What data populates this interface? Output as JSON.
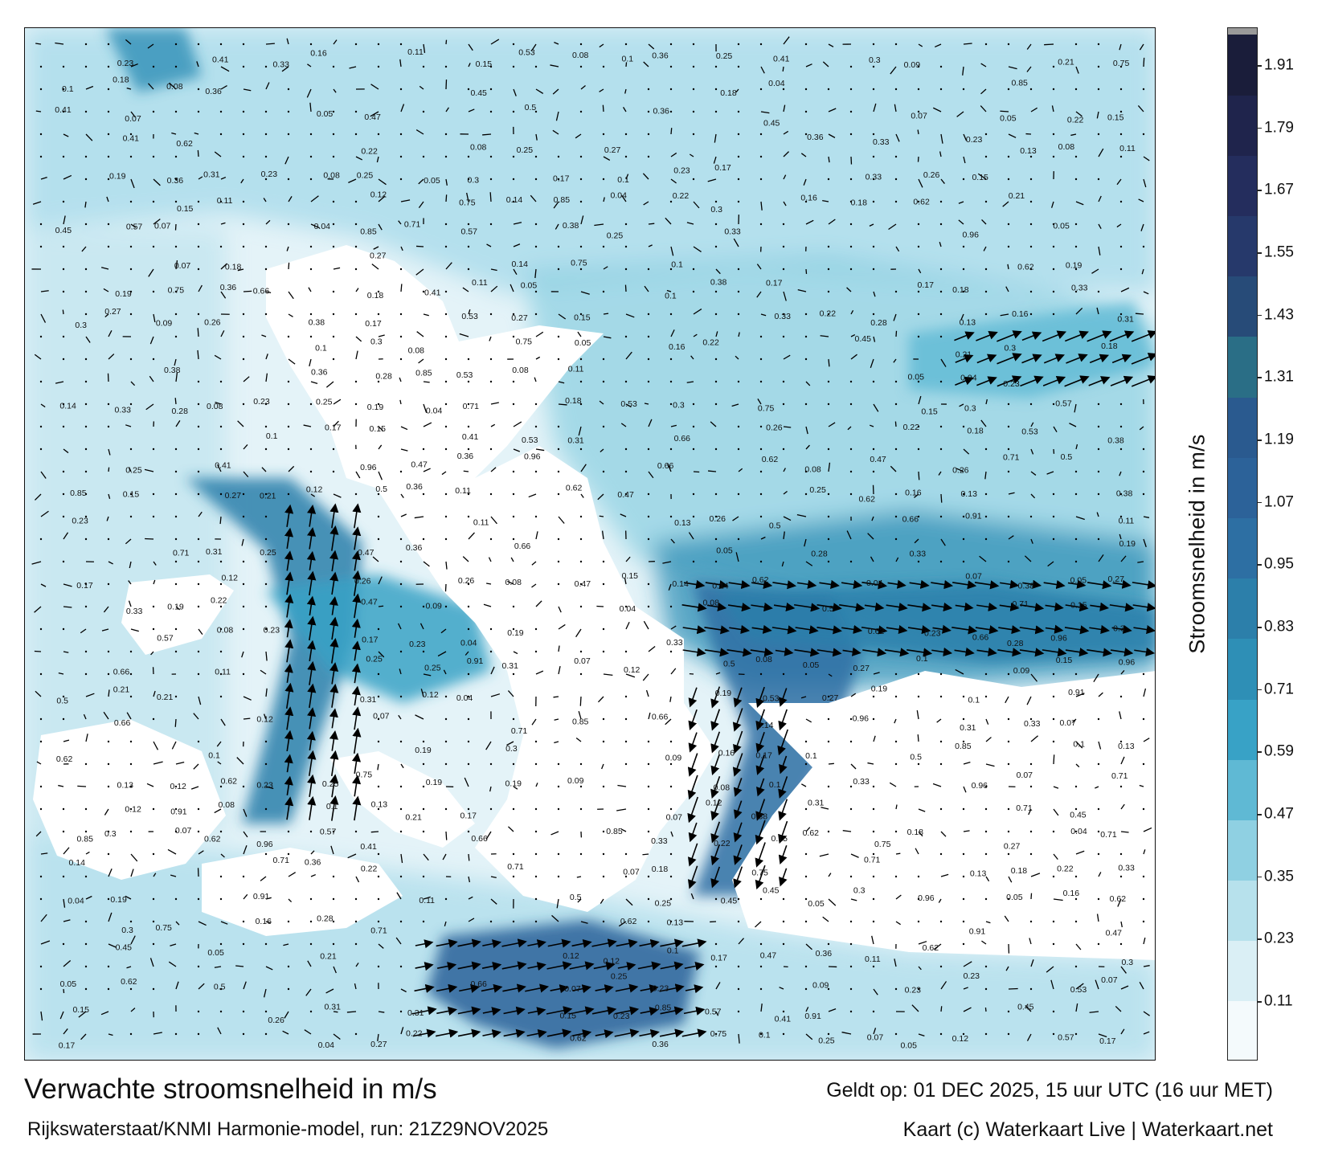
{
  "title": "Verwachte stroomsnelheid in m/s",
  "subtitle": "Rijkswaterstaat/KNMI Harmonie-model, run: 21Z29NOV2025",
  "valid_time": "Geldt op: 01 DEC 2025, 15 uur UTC (16 uur MET)",
  "credit": "Kaart (c) Waterkaart Live | Waterkaart.net",
  "colorbar": {
    "label": "Stroomsnelheid in m/s",
    "ticks": [
      "0.11",
      "0.23",
      "0.35",
      "0.47",
      "0.59",
      "0.71",
      "0.83",
      "0.95",
      "1.07",
      "1.19",
      "1.31",
      "1.43",
      "1.55",
      "1.67",
      "1.79",
      "1.91"
    ],
    "colors": [
      "#f4fafc",
      "#daeff5",
      "#b7e1ec",
      "#8fd0e2",
      "#5fb9d4",
      "#38a2c6",
      "#2e8fb6",
      "#2c7faa",
      "#2d6fa3",
      "#2c6299",
      "#2a5a8f",
      "#2a6e86",
      "#274b78",
      "#26396b",
      "#242d5d",
      "#1f244c",
      "#1a1d3a"
    ]
  },
  "speed_labels": [
    {
      "t": "0.09",
      "v": 0.09
    },
    {
      "t": "0.07",
      "v": 0.07
    },
    {
      "t": "0.13",
      "v": 0.13
    },
    {
      "t": "0.08",
      "v": 0.08
    },
    {
      "t": "0.14",
      "v": 0.14
    },
    {
      "t": "0.15",
      "v": 0.15
    },
    {
      "t": "0.12",
      "v": 0.12
    },
    {
      "t": "0.17",
      "v": 0.17
    },
    {
      "t": "0.19",
      "v": 0.19
    },
    {
      "t": "0.21",
      "v": 0.21
    },
    {
      "t": "0.18",
      "v": 0.18
    },
    {
      "t": "0.16",
      "v": 0.16
    },
    {
      "t": "0.22",
      "v": 0.22
    },
    {
      "t": "0.23",
      "v": 0.23
    },
    {
      "t": "0.26",
      "v": 0.26
    },
    {
      "t": "0.25",
      "v": 0.25
    },
    {
      "t": "0.27",
      "v": 0.27
    },
    {
      "t": "0.28",
      "v": 0.28
    },
    {
      "t": "0.3",
      "v": 0.3
    },
    {
      "t": "0.31",
      "v": 0.31
    },
    {
      "t": "0.33",
      "v": 0.33
    },
    {
      "t": "0.36",
      "v": 0.36
    },
    {
      "t": "0.38",
      "v": 0.38
    },
    {
      "t": "0.41",
      "v": 0.41
    },
    {
      "t": "0.45",
      "v": 0.45
    },
    {
      "t": "0.47",
      "v": 0.47
    },
    {
      "t": "0.5",
      "v": 0.5
    },
    {
      "t": "0.53",
      "v": 0.53
    },
    {
      "t": "0.57",
      "v": 0.57
    },
    {
      "t": "0.62",
      "v": 0.62
    },
    {
      "t": "0.66",
      "v": 0.66
    },
    {
      "t": "0.71",
      "v": 0.71
    },
    {
      "t": "0.75",
      "v": 0.75
    },
    {
      "t": "0.85",
      "v": 0.85
    },
    {
      "t": "0.91",
      "v": 0.91
    },
    {
      "t": "0.96",
      "v": 0.96
    },
    {
      "t": "0.05",
      "v": 0.05
    },
    {
      "t": "0.04",
      "v": 0.04
    },
    {
      "t": "0.11",
      "v": 0.11
    },
    {
      "t": "0.1",
      "v": 0.1
    }
  ]
}
